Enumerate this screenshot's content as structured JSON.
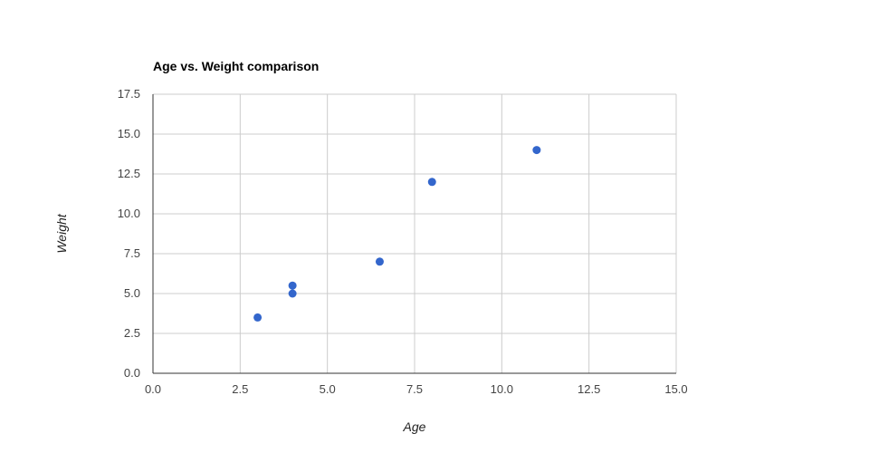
{
  "chart_data": {
    "type": "scatter",
    "title": "Age vs. Weight comparison",
    "xlabel": "Age",
    "ylabel": "Weight",
    "xlim": [
      0,
      15
    ],
    "ylim": [
      0,
      17.5
    ],
    "x_ticks": [
      "0.0",
      "2.5",
      "5.0",
      "7.5",
      "10.0",
      "12.5",
      "15.0"
    ],
    "y_ticks": [
      "0.0",
      "2.5",
      "5.0",
      "7.5",
      "10.0",
      "12.5",
      "15.0",
      "17.5"
    ],
    "grid": true,
    "legend": "none",
    "series": [
      {
        "color": "#3366cc",
        "points": [
          {
            "x": 3,
            "y": 3.5
          },
          {
            "x": 4,
            "y": 5
          },
          {
            "x": 4,
            "y": 5.5
          },
          {
            "x": 6.5,
            "y": 7
          },
          {
            "x": 8,
            "y": 12
          },
          {
            "x": 11,
            "y": 14
          }
        ]
      }
    ],
    "colors": {
      "grid": "#cccccc",
      "axis": "#333333"
    }
  }
}
